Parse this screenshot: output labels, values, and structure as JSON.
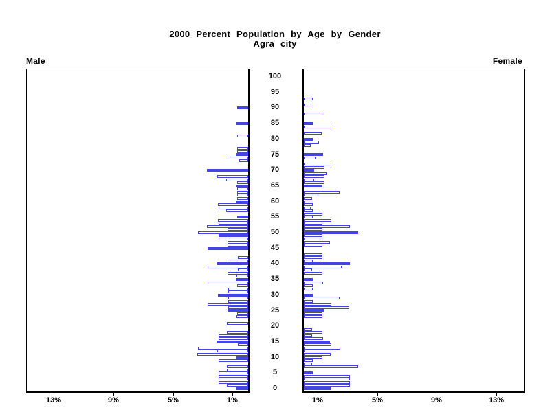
{
  "title": {
    "line1": "2000 Percent Population by Age by Gender",
    "line2": "Agra city"
  },
  "side_labels": {
    "left": "Male",
    "right": "Female"
  },
  "colors": {
    "bar_blue": "#4343e6",
    "axis_black": "#000000",
    "background": "#ffffff"
  },
  "chart_data": {
    "type": "bar",
    "subtype": "population-pyramid",
    "title": "2000 Percent Population by Age by Gender",
    "subtitle": "Agra city",
    "x_unit": "percent of population",
    "x_tick_values": [
      1,
      5,
      9,
      13
    ],
    "x_tick_labels": [
      "1%",
      "5%",
      "9%",
      "13%"
    ],
    "x_axis_max": 14.8,
    "age_min": 0,
    "age_max": 100,
    "age_label_step": 5,
    "age_tick_labels": [
      0,
      5,
      10,
      15,
      20,
      25,
      30,
      35,
      40,
      45,
      50,
      55,
      60,
      65,
      70,
      75,
      80,
      85,
      90,
      95,
      100
    ],
    "grid": false,
    "legend_position": "none",
    "bar_fill_note": "each entry is [percent_value, solid_fill_flag]; solid=1 filled blue, solid=0 white with blue outline; index = single year of age",
    "series": [
      {
        "name": "Male",
        "side": "left",
        "bars": [
          [
            0.77,
            1
          ],
          [
            1.41,
            0
          ],
          [
            2.0,
            0
          ],
          [
            2.0,
            0
          ],
          [
            2.0,
            0
          ],
          [
            2.0,
            0
          ],
          [
            1.41,
            0
          ],
          [
            1.41,
            0
          ],
          [
            0,
            0
          ],
          [
            2.0,
            0
          ],
          [
            0.77,
            1
          ],
          [
            3.41,
            0
          ],
          [
            2.07,
            0
          ],
          [
            3.35,
            0
          ],
          [
            0.69,
            0
          ],
          [
            2.07,
            1
          ],
          [
            2.0,
            0
          ],
          [
            2.0,
            0
          ],
          [
            1.41,
            0
          ],
          [
            0,
            0
          ],
          [
            0,
            0
          ],
          [
            1.41,
            0
          ],
          [
            0,
            0
          ],
          [
            0.77,
            0
          ],
          [
            0.75,
            0
          ],
          [
            1.4,
            1
          ],
          [
            1.32,
            0
          ],
          [
            2.73,
            0
          ],
          [
            1.32,
            0
          ],
          [
            1.32,
            0
          ],
          [
            2.01,
            1
          ],
          [
            1.32,
            0
          ],
          [
            1.32,
            0
          ],
          [
            0.74,
            0
          ],
          [
            2.73,
            0
          ],
          [
            0.8,
            1
          ],
          [
            0.8,
            0
          ],
          [
            1.38,
            0
          ],
          [
            0.69,
            0
          ],
          [
            2.72,
            0
          ],
          [
            2.07,
            1
          ],
          [
            1.38,
            0
          ],
          [
            0.69,
            0
          ],
          [
            0,
            0
          ],
          [
            0,
            0
          ],
          [
            2.74,
            1
          ],
          [
            1.38,
            0
          ],
          [
            1.38,
            0
          ],
          [
            2.0,
            0
          ],
          [
            2.0,
            1
          ],
          [
            3.38,
            0
          ],
          [
            1.38,
            0
          ],
          [
            2.76,
            0
          ],
          [
            2.0,
            0
          ],
          [
            2.03,
            0
          ],
          [
            0.74,
            1
          ],
          [
            0,
            0
          ],
          [
            1.46,
            0
          ],
          [
            2.0,
            0
          ],
          [
            2.03,
            0
          ],
          [
            0.77,
            1
          ],
          [
            0.74,
            0
          ],
          [
            0.74,
            0
          ],
          [
            0.74,
            0
          ],
          [
            0.74,
            0
          ],
          [
            0.77,
            1
          ],
          [
            0.74,
            0
          ],
          [
            1.46,
            0
          ],
          [
            2.07,
            0
          ],
          [
            0,
            0
          ],
          [
            2.76,
            1
          ],
          [
            0,
            0
          ],
          [
            0,
            0
          ],
          [
            0.6,
            0
          ],
          [
            1.38,
            0
          ],
          [
            0.77,
            1
          ],
          [
            0.74,
            0
          ],
          [
            0.74,
            0
          ],
          [
            0,
            0
          ],
          [
            0,
            0
          ],
          [
            0,
            0
          ],
          [
            0.74,
            0
          ],
          [
            0,
            0
          ],
          [
            0,
            0
          ],
          [
            0,
            0
          ],
          [
            0.78,
            1
          ],
          [
            0,
            0
          ],
          [
            0,
            0
          ],
          [
            0,
            0
          ],
          [
            0,
            0
          ],
          [
            0.74,
            1
          ],
          [
            0,
            0
          ],
          [
            0,
            0
          ],
          [
            0,
            0
          ],
          [
            0,
            0
          ],
          [
            0,
            0
          ],
          [
            0,
            0
          ],
          [
            0,
            0
          ],
          [
            0,
            0
          ],
          [
            0,
            0
          ],
          [
            0,
            0
          ]
        ]
      },
      {
        "name": "Female",
        "side": "right",
        "bars": [
          [
            1.81,
            1
          ],
          [
            3.07,
            0
          ],
          [
            3.07,
            0
          ],
          [
            3.1,
            0
          ],
          [
            3.07,
            0
          ],
          [
            0.58,
            1
          ],
          [
            0,
            0
          ],
          [
            3.66,
            0
          ],
          [
            0.54,
            0
          ],
          [
            0.58,
            0
          ],
          [
            1.23,
            0
          ],
          [
            1.8,
            0
          ],
          [
            1.84,
            0
          ],
          [
            2.43,
            0
          ],
          [
            1.84,
            0
          ],
          [
            1.76,
            1
          ],
          [
            1.3,
            0
          ],
          [
            0.54,
            0
          ],
          [
            1.26,
            0
          ],
          [
            0.54,
            0
          ],
          [
            0,
            0
          ],
          [
            0,
            0
          ],
          [
            0,
            0
          ],
          [
            1.23,
            0
          ],
          [
            1.23,
            0
          ],
          [
            1.32,
            1
          ],
          [
            3.05,
            0
          ],
          [
            1.83,
            0
          ],
          [
            0.6,
            0
          ],
          [
            2.4,
            0
          ],
          [
            0.6,
            1
          ],
          [
            0,
            0
          ],
          [
            0.6,
            0
          ],
          [
            0.6,
            0
          ],
          [
            1.29,
            0
          ],
          [
            0.6,
            1
          ],
          [
            0,
            0
          ],
          [
            1.23,
            0
          ],
          [
            0.54,
            0
          ],
          [
            2.53,
            0
          ],
          [
            3.1,
            1
          ],
          [
            0.6,
            0
          ],
          [
            1.26,
            0
          ],
          [
            1.26,
            0
          ],
          [
            0,
            0
          ],
          [
            0,
            0
          ],
          [
            1.23,
            0
          ],
          [
            1.76,
            0
          ],
          [
            1.26,
            0
          ],
          [
            1.23,
            0
          ],
          [
            3.66,
            1
          ],
          [
            1.23,
            0
          ],
          [
            3.07,
            0
          ],
          [
            1.26,
            0
          ],
          [
            1.84,
            0
          ],
          [
            0.6,
            0
          ],
          [
            1.26,
            0
          ],
          [
            0.6,
            0
          ],
          [
            0.46,
            0
          ],
          [
            0.6,
            0
          ],
          [
            0.5,
            0
          ],
          [
            0.54,
            0
          ],
          [
            0.97,
            0
          ],
          [
            2.38,
            0
          ],
          [
            0,
            0
          ],
          [
            1.23,
            1
          ],
          [
            1.38,
            0
          ],
          [
            0.7,
            0
          ],
          [
            1.38,
            0
          ],
          [
            1.5,
            0
          ],
          [
            0.7,
            1
          ],
          [
            1.4,
            0
          ],
          [
            1.84,
            0
          ],
          [
            0,
            0
          ],
          [
            0.77,
            0
          ],
          [
            1.3,
            1
          ],
          [
            0,
            0
          ],
          [
            0,
            0
          ],
          [
            0.48,
            0
          ],
          [
            1.0,
            0
          ],
          [
            0.58,
            1
          ],
          [
            0,
            0
          ],
          [
            1.2,
            0
          ],
          [
            0,
            0
          ],
          [
            1.84,
            0
          ],
          [
            0.58,
            1
          ],
          [
            0,
            0
          ],
          [
            0,
            0
          ],
          [
            1.26,
            0
          ],
          [
            0,
            0
          ],
          [
            0,
            0
          ],
          [
            0.65,
            0
          ],
          [
            0,
            0
          ],
          [
            0.6,
            0
          ],
          [
            0,
            0
          ],
          [
            0,
            0
          ],
          [
            0,
            0
          ],
          [
            0,
            0
          ],
          [
            0,
            0
          ],
          [
            0,
            0
          ],
          [
            0,
            0
          ]
        ]
      }
    ]
  }
}
